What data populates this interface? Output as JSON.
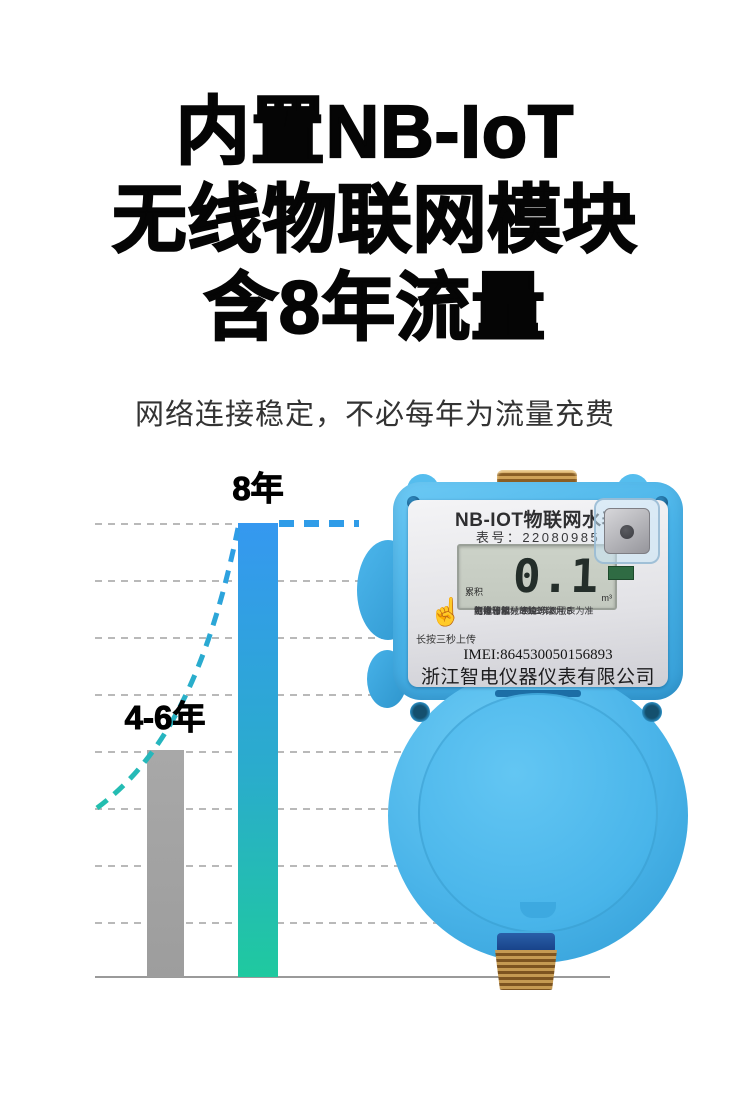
{
  "headline": {
    "line1": "内置NB-IoT",
    "line2": "无线物联网模块",
    "line3": "含8年流量"
  },
  "subtitle": "网络连接稳定，不必每年为流量充费",
  "chart_data": {
    "type": "bar",
    "categories": [
      "4-6年",
      "8年"
    ],
    "values": [
      4,
      8
    ],
    "value_labels": [
      "4-6年",
      "8年"
    ],
    "unit": "年",
    "ylim": [
      0,
      8
    ],
    "gridlines": true,
    "gridline_style": "dashed",
    "bar_colors": [
      "#9d9d9d",
      "#3598f0→#1fc99f"
    ],
    "annotation": "dashed trend line rising from 4-6年 bar to 8年 bar top"
  },
  "colors": {
    "accent_blue": "#2f9ce8",
    "accent_teal": "#1fc99f",
    "gray_bar": "#9d9d9d",
    "product_blue": "#49b3e8",
    "brass": "#b5813c",
    "lcd_bg": "#c8cec4"
  },
  "icons": {
    "press_hand": "☝"
  },
  "product": {
    "label_title": "NB-IOT物联网水表",
    "serial": "表号：22080985",
    "lcd": {
      "left_label": "累积",
      "value": "0.1",
      "unit": "m³"
    },
    "specs": [
      "防护等级： IP68",
      "电磁环境： E1",
      "气候和机械环境等级： B",
      "制造日期： 2022年8月",
      "如电子部分故障 以机械表为准"
    ],
    "press_hint": "长按三秒上传",
    "imei": "IMEI:864530050156893",
    "company": "浙江智电仪器仪表有限公司"
  }
}
